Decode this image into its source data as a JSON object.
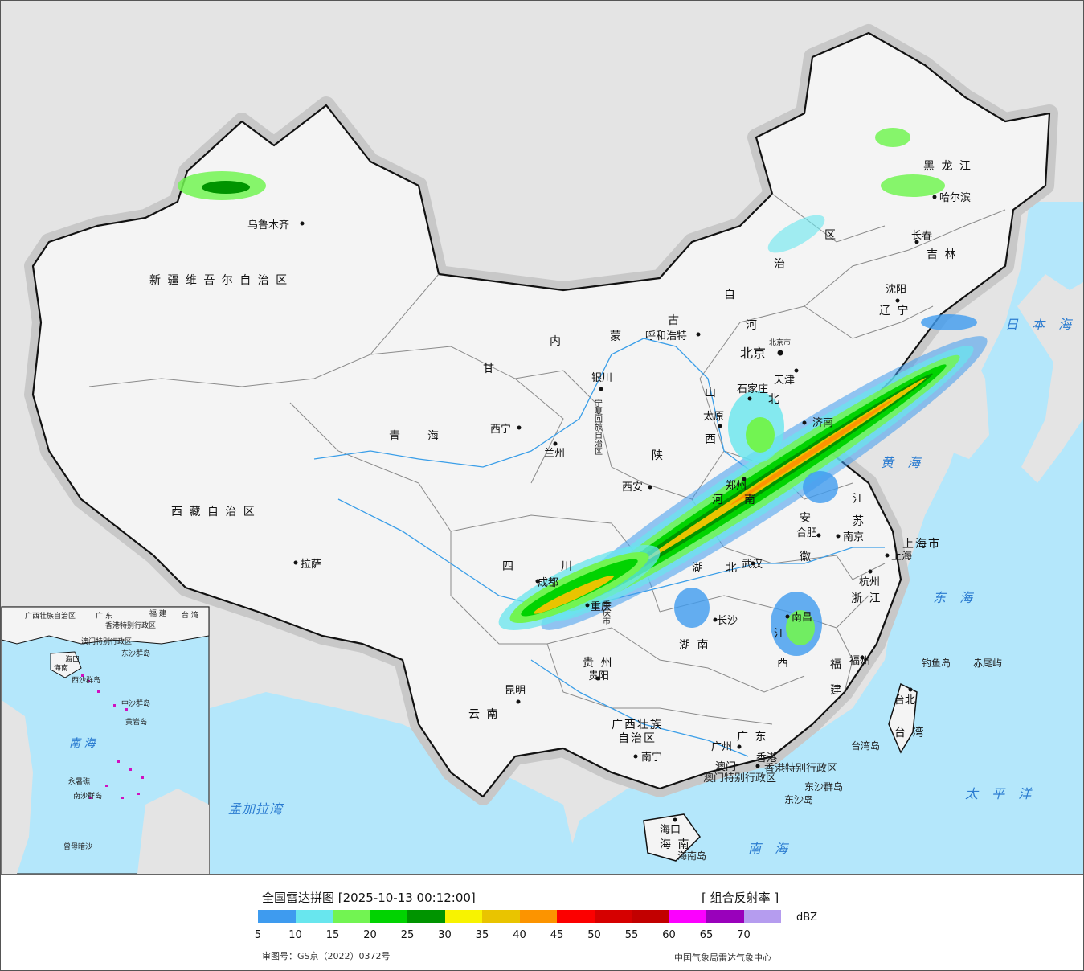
{
  "map": {
    "provinces": [
      {
        "name": "新 疆 维 吾 尔 自 治 区"
      },
      {
        "name": "西 藏 自 治 区"
      },
      {
        "name": "青　　海"
      },
      {
        "name": "甘"
      },
      {
        "name": "内"
      },
      {
        "name": "蒙"
      },
      {
        "name": "古"
      },
      {
        "name": "黑 龙 江"
      },
      {
        "name": "吉 林"
      },
      {
        "name": "辽 宁"
      },
      {
        "name": "河"
      },
      {
        "name": "北"
      },
      {
        "name": "山"
      },
      {
        "name": "西"
      },
      {
        "name": "陕"
      },
      {
        "name": "四"
      },
      {
        "name": "川"
      },
      {
        "name": "云 南"
      },
      {
        "name": "贵 州"
      },
      {
        "name": "湖 南"
      },
      {
        "name": "湖"
      },
      {
        "name": "北"
      },
      {
        "name": "安"
      },
      {
        "name": "徽"
      },
      {
        "name": "江"
      },
      {
        "name": "苏"
      },
      {
        "name": "浙 江"
      },
      {
        "name": "福"
      },
      {
        "name": "建"
      },
      {
        "name": "江"
      },
      {
        "name": "西"
      },
      {
        "name": "广 东"
      },
      {
        "name": "广西壮族"
      },
      {
        "name": "自治区"
      },
      {
        "name": "海 南"
      },
      {
        "name": "台 湾"
      },
      {
        "name": "上海市"
      },
      {
        "name": "河"
      },
      {
        "name": "南"
      },
      {
        "name": "区"
      },
      {
        "name": "治"
      },
      {
        "name": "自"
      }
    ],
    "cities": [
      {
        "name": "乌鲁木齐"
      },
      {
        "name": "拉萨"
      },
      {
        "name": "西宁"
      },
      {
        "name": "兰州"
      },
      {
        "name": "银川"
      },
      {
        "name": "呼和浩特"
      },
      {
        "name": "哈尔滨"
      },
      {
        "name": "长春"
      },
      {
        "name": "沈阳"
      },
      {
        "name": "北京"
      },
      {
        "name": "天津"
      },
      {
        "name": "石家庄"
      },
      {
        "name": "太原"
      },
      {
        "name": "西安"
      },
      {
        "name": "郑州"
      },
      {
        "name": "成都"
      },
      {
        "name": "重庆"
      },
      {
        "name": "昆明"
      },
      {
        "name": "贵阳"
      },
      {
        "name": "长沙"
      },
      {
        "name": "武汉"
      },
      {
        "name": "合肥"
      },
      {
        "name": "南京"
      },
      {
        "name": "上海"
      },
      {
        "name": "杭州"
      },
      {
        "name": "南昌"
      },
      {
        "name": "福州"
      },
      {
        "name": "台北"
      },
      {
        "name": "广州"
      },
      {
        "name": "南宁"
      },
      {
        "name": "海口"
      },
      {
        "name": "澳门"
      },
      {
        "name": "香港"
      },
      {
        "name": "济南"
      }
    ],
    "other_labels": {
      "ningxia": "宁夏回族自治区",
      "chongqing_city": "重庆市",
      "hk_region": "香港特别行政区",
      "macao_region": "澳门特别行政区",
      "dongsha": "东沙群岛",
      "dongsha_island": "东沙岛",
      "diaoyu": "钓鱼岛",
      "chiwei": "赤尾屿",
      "taiwan_island": "台湾岛",
      "hainan_island": "海南岛",
      "beijing_short": "北京市"
    },
    "seas": {
      "japan_sea": "日 本 海",
      "yellow_sea": "黄 海",
      "east_sea": "东 海",
      "pacific": "太 平 洋",
      "south_sea": "南 海",
      "bengal": "孟加拉湾"
    },
    "inset": {
      "south_sea": "南 海",
      "labels": [
        "广西壮族自治区",
        "广 东",
        "福 建",
        "台 湾",
        "香港特别行政区",
        "澳门特别行政区",
        "海口",
        "海南",
        "西沙群岛",
        "中沙群岛",
        "南沙群岛",
        "东沙群岛",
        "永暑礁",
        "曾母暗沙",
        "黄岩岛"
      ]
    }
  },
  "legend": {
    "title": "全国雷达拼图 [2025-10-13 00:12:00]",
    "product": "[ 组合反射率 ]",
    "unit": "dBZ",
    "colors": [
      "#3e9bef",
      "#68e6ee",
      "#72f452",
      "#01d301",
      "#009400",
      "#f8f300",
      "#e9c400",
      "#fc9400",
      "#fc0000",
      "#d60000",
      "#c20000",
      "#fc00ff",
      "#9901bb",
      "#b59cef"
    ],
    "ticks": [
      "5",
      "10",
      "15",
      "20",
      "25",
      "30",
      "35",
      "40",
      "45",
      "50",
      "55",
      "60",
      "65",
      "70"
    ],
    "approval": "审图号：GS京（2022）0372号",
    "agency": "中国气象局雷达气象中心"
  }
}
